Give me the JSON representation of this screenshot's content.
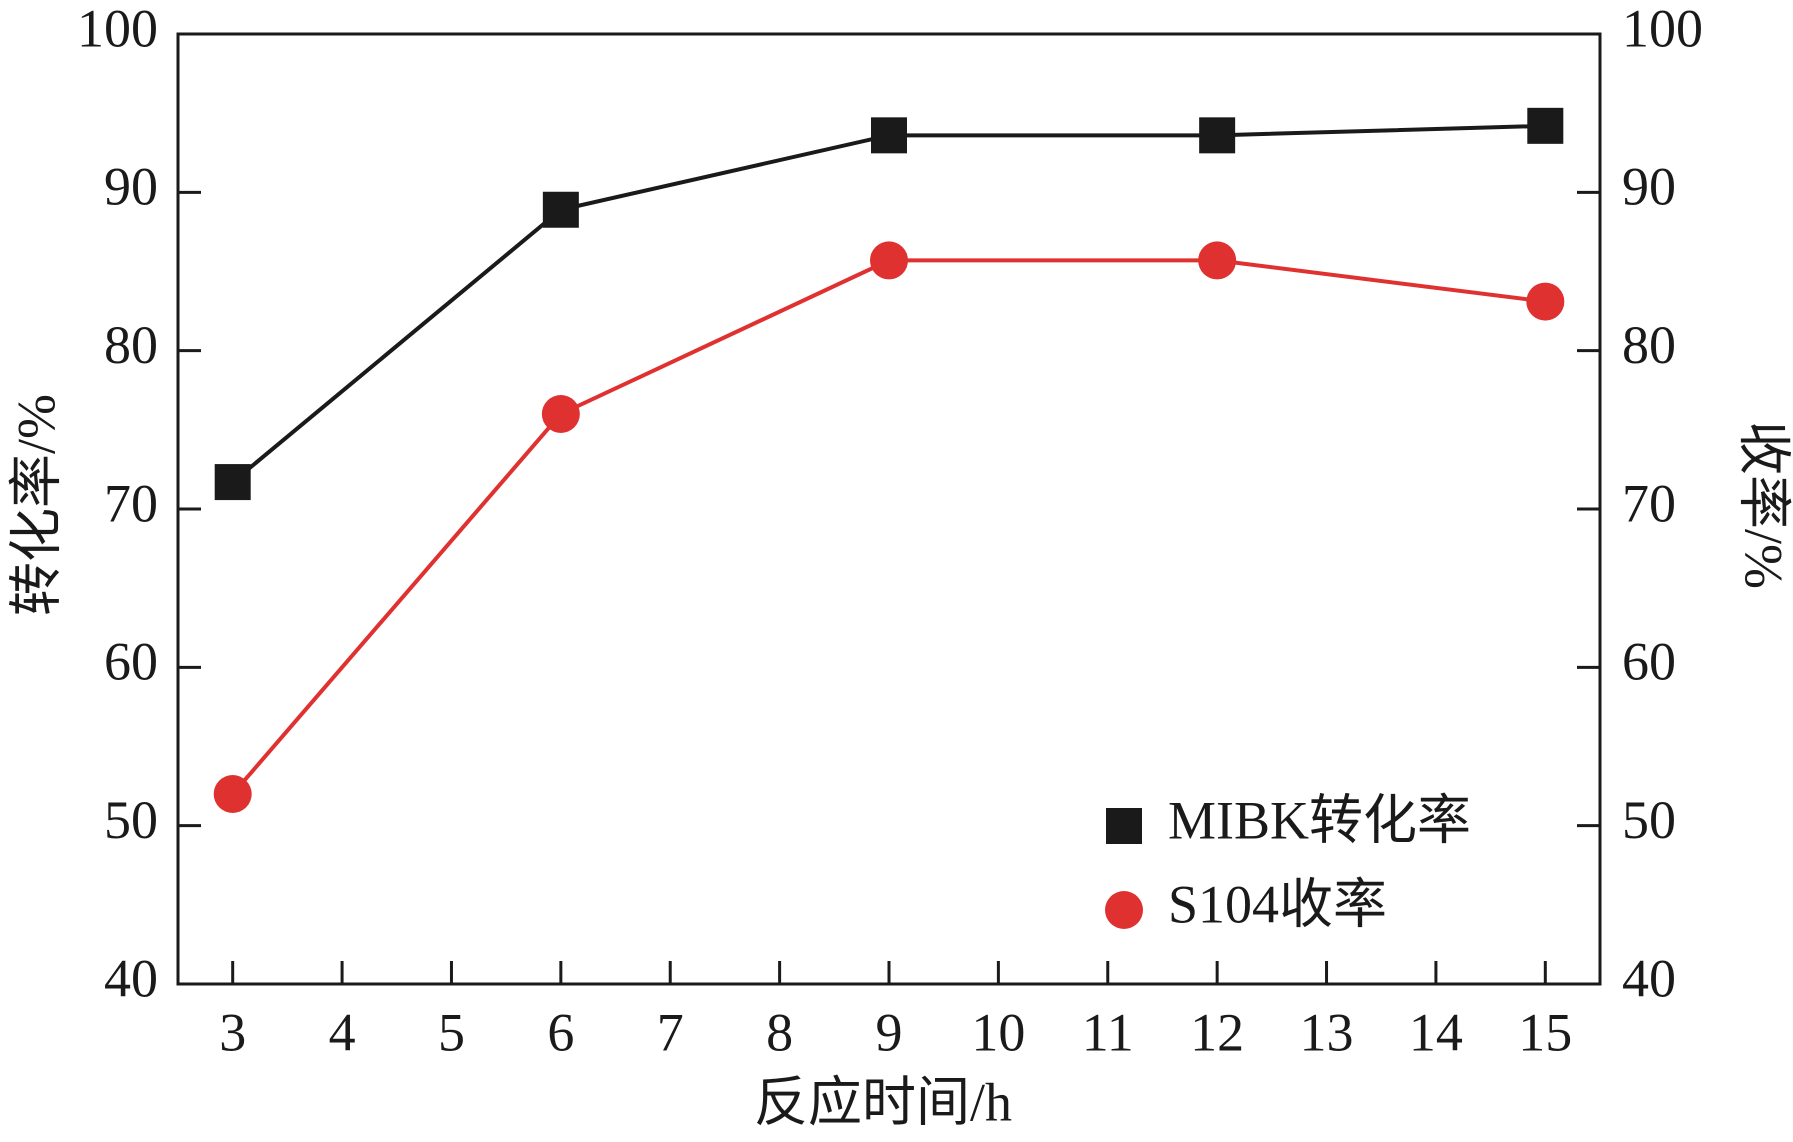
{
  "chart_data": {
    "type": "line",
    "x": [
      3,
      6,
      9,
      12,
      15
    ],
    "series": [
      {
        "name": "MIBK转化率",
        "color": "#1a1a1a",
        "marker": "square",
        "values": [
          71.7,
          88.9,
          93.6,
          93.6,
          94.2
        ]
      },
      {
        "name": "S104收率",
        "color": "#e03131",
        "marker": "circle",
        "axis": "y2",
        "values": [
          52,
          76,
          85.7,
          85.7,
          83.1
        ]
      }
    ],
    "xlabel": "反应时间/h",
    "ylabel": "转化率/%",
    "y2label": "收率/%",
    "xlim": [
      2.5,
      15.5
    ],
    "xticks": [
      3,
      4,
      5,
      6,
      7,
      8,
      9,
      10,
      11,
      12,
      13,
      14,
      15
    ],
    "ylim": [
      40,
      100
    ],
    "yticks": [
      40,
      50,
      60,
      70,
      80,
      90,
      100
    ],
    "y2lim": [
      40,
      100
    ],
    "y2ticks": [
      40,
      50,
      60,
      70,
      80,
      90,
      100
    ],
    "legend": "lower right"
  }
}
